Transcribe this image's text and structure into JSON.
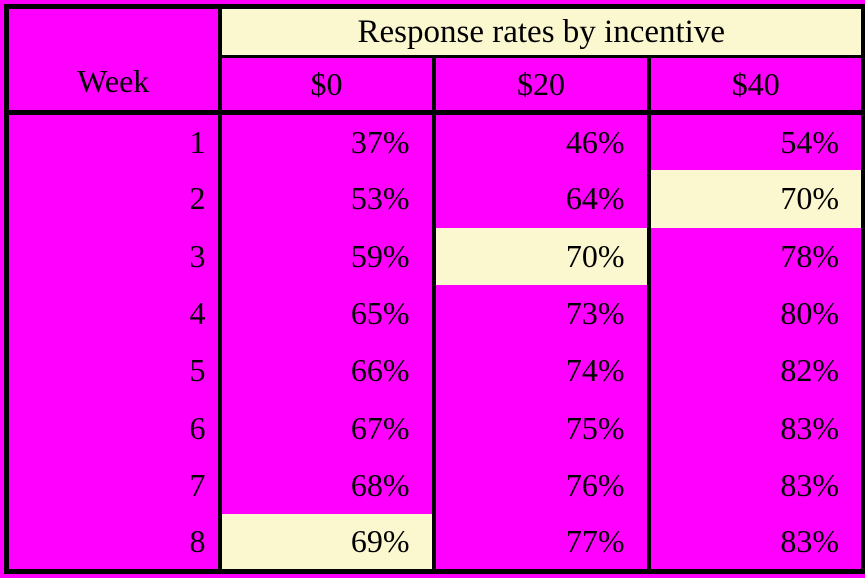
{
  "page": {
    "background_color": "#FF00FF"
  },
  "table": {
    "title": "Response rates by incentive",
    "week_header": "Week",
    "column_headers": [
      "$0",
      "$20",
      "$40"
    ],
    "rows": [
      {
        "week": "1",
        "values": [
          "37%",
          "46%",
          "54%"
        ],
        "highlight": [
          false,
          false,
          false
        ]
      },
      {
        "week": "2",
        "values": [
          "53%",
          "64%",
          "70%"
        ],
        "highlight": [
          false,
          false,
          true
        ]
      },
      {
        "week": "3",
        "values": [
          "59%",
          "70%",
          "78%"
        ],
        "highlight": [
          false,
          true,
          false
        ]
      },
      {
        "week": "4",
        "values": [
          "65%",
          "73%",
          "80%"
        ],
        "highlight": [
          false,
          false,
          false
        ]
      },
      {
        "week": "5",
        "values": [
          "66%",
          "74%",
          "82%"
        ],
        "highlight": [
          false,
          false,
          false
        ]
      },
      {
        "week": "6",
        "values": [
          "67%",
          "75%",
          "83%"
        ],
        "highlight": [
          false,
          false,
          false
        ]
      },
      {
        "week": "7",
        "values": [
          "68%",
          "76%",
          "83%"
        ],
        "highlight": [
          false,
          false,
          false
        ]
      },
      {
        "week": "8",
        "values": [
          "69%",
          "77%",
          "83%"
        ],
        "highlight": [
          true,
          false,
          false
        ]
      }
    ],
    "colors": {
      "cell_background": "#FF00FF",
      "highlight_background": "#FBF8CF",
      "border": "#000000",
      "text": "#000000"
    }
  },
  "chart_data": {
    "type": "table",
    "title": "Response rates by incentive",
    "xlabel": "Week",
    "categories": [
      "1",
      "2",
      "3",
      "4",
      "5",
      "6",
      "7",
      "8"
    ],
    "series": [
      {
        "name": "$0",
        "values": [
          37,
          53,
          59,
          65,
          66,
          67,
          68,
          69
        ]
      },
      {
        "name": "$20",
        "values": [
          46,
          64,
          70,
          73,
          74,
          75,
          76,
          77
        ]
      },
      {
        "name": "$40",
        "values": [
          54,
          70,
          78,
          80,
          82,
          83,
          83,
          83
        ]
      }
    ],
    "units": "percent",
    "highlighted_cells": [
      {
        "week": "2",
        "series": "$40",
        "value": 70
      },
      {
        "week": "3",
        "series": "$20",
        "value": 70
      },
      {
        "week": "8",
        "series": "$0",
        "value": 69
      }
    ]
  }
}
